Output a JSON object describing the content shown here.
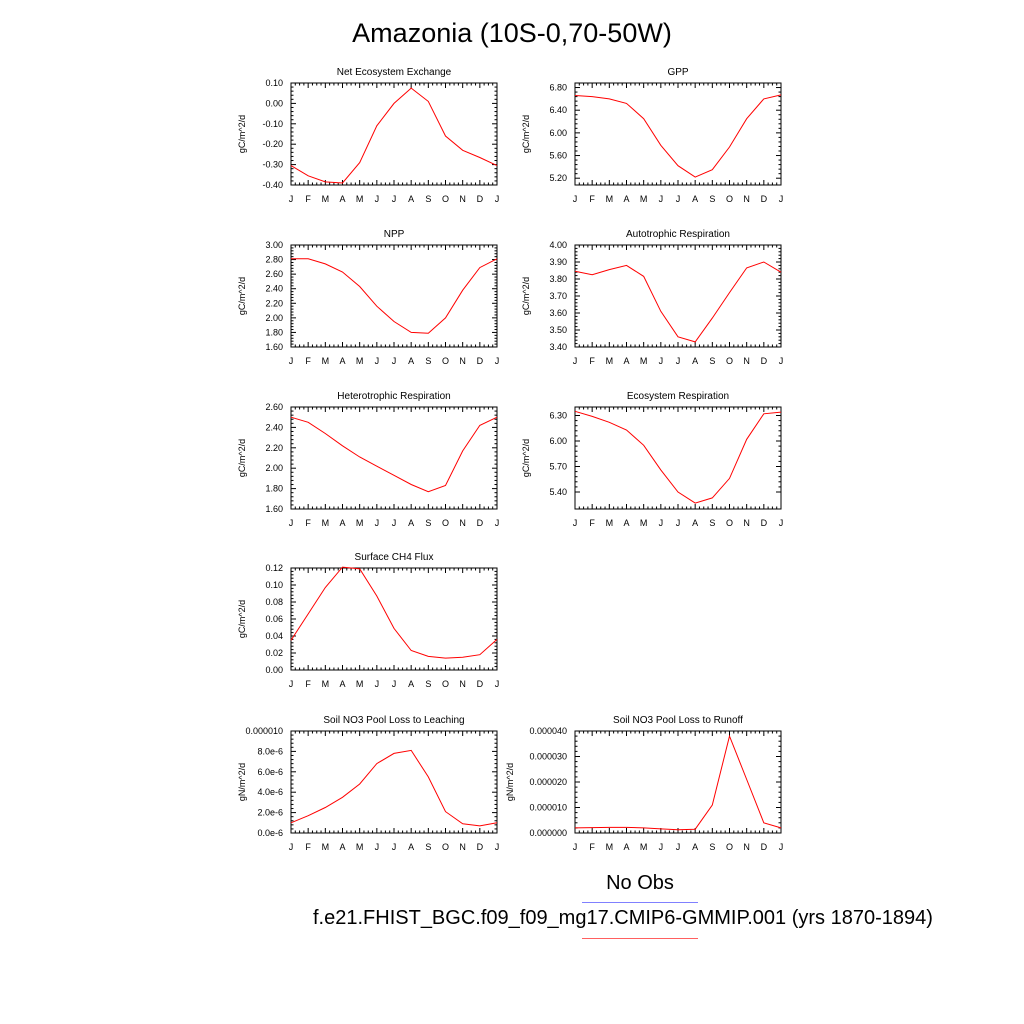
{
  "title": "Amazonia (10S-0,70-50W)",
  "legend": {
    "obs_label": "No Obs",
    "obs_color": "#4040ff",
    "model_label": "f.e21.FHIST_BGC.f09_f09_mg17.CMIP6-GMMIP.001 (yrs 1870-1894)",
    "model_color": "#ff0000"
  },
  "months": [
    "J",
    "F",
    "M",
    "A",
    "M",
    "J",
    "J",
    "A",
    "S",
    "O",
    "N",
    "D",
    "J"
  ],
  "chart_data": [
    {
      "type": "line",
      "title": "Net Ecosystem Exchange",
      "xlabel": "",
      "ylabel": "gC/m^2/d",
      "ylim": [
        -0.4,
        0.1
      ],
      "yticks": [
        "-0.40",
        "-0.30",
        "-0.20",
        "-0.10",
        "0.00",
        "0.10"
      ],
      "ytick_values": [
        -0.4,
        -0.3,
        -0.2,
        -0.1,
        0.0,
        0.1
      ],
      "series": [
        {
          "color": "#ff0000",
          "values": [
            -0.305,
            -0.355,
            -0.385,
            -0.39,
            -0.29,
            -0.11,
            0.0,
            0.075,
            0.01,
            -0.16,
            -0.23,
            -0.265,
            -0.305
          ]
        }
      ]
    },
    {
      "type": "line",
      "title": "GPP",
      "xlabel": "",
      "ylabel": "gC/m^2/d",
      "ylim": [
        5.08,
        6.88
      ],
      "yticks": [
        "5.20",
        "5.60",
        "6.00",
        "6.40",
        "6.80"
      ],
      "ytick_values": [
        5.2,
        5.6,
        6.0,
        6.4,
        6.8
      ],
      "series": [
        {
          "color": "#ff0000",
          "values": [
            6.66,
            6.64,
            6.6,
            6.52,
            6.25,
            5.78,
            5.42,
            5.22,
            5.35,
            5.75,
            6.25,
            6.6,
            6.67
          ]
        }
      ]
    },
    {
      "type": "line",
      "title": "NPP",
      "xlabel": "",
      "ylabel": "gC/m^2/d",
      "ylim": [
        1.6,
        3.0
      ],
      "yticks": [
        "1.60",
        "1.80",
        "2.00",
        "2.20",
        "2.40",
        "2.60",
        "2.80",
        "3.00"
      ],
      "ytick_values": [
        1.6,
        1.8,
        2.0,
        2.2,
        2.4,
        2.6,
        2.8,
        3.0
      ],
      "series": [
        {
          "color": "#ff0000",
          "values": [
            2.81,
            2.81,
            2.74,
            2.63,
            2.43,
            2.16,
            1.95,
            1.8,
            1.79,
            2.0,
            2.38,
            2.69,
            2.81
          ]
        }
      ]
    },
    {
      "type": "line",
      "title": "Autotrophic Respiration",
      "xlabel": "",
      "ylabel": "gC/m^2/d",
      "ylim": [
        3.4,
        4.0
      ],
      "yticks": [
        "3.40",
        "3.50",
        "3.60",
        "3.70",
        "3.80",
        "3.90",
        "4.00"
      ],
      "ytick_values": [
        3.4,
        3.5,
        3.6,
        3.7,
        3.8,
        3.9,
        4.0
      ],
      "series": [
        {
          "color": "#ff0000",
          "values": [
            3.845,
            3.825,
            3.855,
            3.88,
            3.815,
            3.61,
            3.46,
            3.43,
            3.57,
            3.72,
            3.865,
            3.9,
            3.84
          ]
        }
      ]
    },
    {
      "type": "line",
      "title": "Heterotrophic Respiration",
      "xlabel": "",
      "ylabel": "gC/m^2/d",
      "ylim": [
        1.6,
        2.6
      ],
      "yticks": [
        "1.60",
        "1.80",
        "2.00",
        "2.20",
        "2.40",
        "2.60"
      ],
      "ytick_values": [
        1.6,
        1.8,
        2.0,
        2.2,
        2.4,
        2.6
      ],
      "series": [
        {
          "color": "#ff0000",
          "values": [
            2.5,
            2.45,
            2.34,
            2.22,
            2.11,
            2.02,
            1.93,
            1.84,
            1.77,
            1.83,
            2.17,
            2.42,
            2.5
          ]
        }
      ]
    },
    {
      "type": "line",
      "title": "Ecosystem Respiration",
      "xlabel": "",
      "ylabel": "gC/m^2/d",
      "ylim": [
        5.2,
        6.4
      ],
      "yticks": [
        "5.40",
        "5.70",
        "6.00",
        "6.30"
      ],
      "ytick_values": [
        5.4,
        5.7,
        6.0,
        6.3
      ],
      "series": [
        {
          "color": "#ff0000",
          "values": [
            6.35,
            6.29,
            6.22,
            6.13,
            5.95,
            5.66,
            5.4,
            5.27,
            5.33,
            5.56,
            6.02,
            6.32,
            6.34
          ]
        }
      ]
    },
    {
      "type": "line",
      "title": "Surface CH4 Flux",
      "xlabel": "",
      "ylabel": "gC/m^2/d",
      "ylim": [
        0.0,
        0.12
      ],
      "yticks": [
        "0.00",
        "0.02",
        "0.04",
        "0.06",
        "0.08",
        "0.10",
        "0.12"
      ],
      "ytick_values": [
        0.0,
        0.02,
        0.04,
        0.06,
        0.08,
        0.1,
        0.12
      ],
      "series": [
        {
          "color": "#ff0000",
          "values": [
            0.035,
            0.066,
            0.097,
            0.121,
            0.119,
            0.087,
            0.049,
            0.023,
            0.016,
            0.014,
            0.015,
            0.018,
            0.036
          ]
        }
      ]
    },
    {
      "type": "line",
      "title": "Soil NO3 Pool Loss to Leaching",
      "xlabel": "",
      "ylabel": "gN/m^2/d",
      "ylim": [
        0.0,
        1e-05
      ],
      "yticks": [
        "0.0e-6",
        "2.0e-6",
        "4.0e-6",
        "6.0e-6",
        "8.0e-6",
        "0.000010"
      ],
      "ytick_values": [
        0.0,
        2e-06,
        4e-06,
        6e-06,
        8e-06,
        1e-05
      ],
      "series": [
        {
          "color": "#ff0000",
          "values": [
            1e-06,
            1.7e-06,
            2.5e-06,
            3.5e-06,
            4.8e-06,
            6.8e-06,
            7.8e-06,
            8.1e-06,
            5.5e-06,
            2.1e-06,
            9e-07,
            7e-07,
            1e-06
          ]
        }
      ]
    },
    {
      "type": "line",
      "title": "Soil NO3 Pool Loss to Runoff",
      "xlabel": "",
      "ylabel": "gN/m^2/d",
      "ylim": [
        0.0,
        4e-05
      ],
      "yticks": [
        "0.000000",
        "0.000010",
        "0.000020",
        "0.000030",
        "0.000040"
      ],
      "ytick_values": [
        0.0,
        1e-05,
        2e-05,
        3e-05,
        4e-05
      ],
      "series": [
        {
          "color": "#ff0000",
          "values": [
            2e-06,
            2.1e-06,
            2.2e-06,
            2.2e-06,
            2e-06,
            1.6e-06,
            1.3e-06,
            1.5e-06,
            1.1e-05,
            3.8e-05,
            2.1e-05,
            4e-06,
            2e-06
          ]
        }
      ]
    }
  ]
}
